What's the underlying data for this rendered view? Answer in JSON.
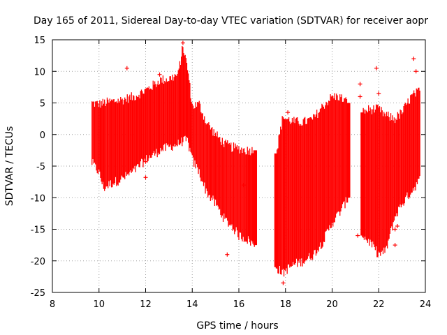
{
  "chart_data": {
    "type": "scatter",
    "title": "Day 165 of 2011, Sidereal Day-to-day VTEC variation (SDTVAR) for receiver aopr",
    "xlabel": "GPS time / hours",
    "ylabel": "SDTVAR / TECUs",
    "xlim": [
      8,
      24
    ],
    "ylim": [
      -25,
      15
    ],
    "xticks": [
      8,
      10,
      12,
      14,
      16,
      18,
      20,
      22,
      24
    ],
    "yticks": [
      -25,
      -20,
      -15,
      -10,
      -5,
      0,
      5,
      10,
      15
    ],
    "grid": true,
    "marker": "plus",
    "color": "#ff0000",
    "series": [
      {
        "name": "SDTVAR",
        "envelope": [
          {
            "x": 9.7,
            "min": -4.5,
            "max": 5.0
          },
          {
            "x": 10.0,
            "min": -6.0,
            "max": 4.8
          },
          {
            "x": 10.2,
            "min": -8.5,
            "max": 5.0
          },
          {
            "x": 10.5,
            "min": -7.8,
            "max": 5.2
          },
          {
            "x": 11.0,
            "min": -7.0,
            "max": 5.5
          },
          {
            "x": 11.5,
            "min": -5.8,
            "max": 6.0
          },
          {
            "x": 12.0,
            "min": -4.0,
            "max": 7.0
          },
          {
            "x": 12.5,
            "min": -2.8,
            "max": 8.2
          },
          {
            "x": 12.6,
            "min": -2.5,
            "max": 8.6
          },
          {
            "x": 13.0,
            "min": -2.0,
            "max": 8.8
          },
          {
            "x": 13.4,
            "min": -1.5,
            "max": 9.5
          },
          {
            "x": 13.6,
            "min": -1.0,
            "max": 14.0
          },
          {
            "x": 13.8,
            "min": -1.0,
            "max": 10.5
          },
          {
            "x": 14.0,
            "min": -4.0,
            "max": 4.5
          },
          {
            "x": 14.3,
            "min": -6.0,
            "max": 4.8
          },
          {
            "x": 14.6,
            "min": -9.0,
            "max": 2.0
          },
          {
            "x": 15.0,
            "min": -11.0,
            "max": 0.0
          },
          {
            "x": 15.4,
            "min": -13.5,
            "max": -1.5
          },
          {
            "x": 15.7,
            "min": -14.5,
            "max": -2.0
          },
          {
            "x": 16.0,
            "min": -16.0,
            "max": -2.2
          },
          {
            "x": 16.3,
            "min": -16.5,
            "max": -2.5
          },
          {
            "x": 16.5,
            "min": -17.0,
            "max": -2.5
          },
          {
            "x": 16.7,
            "min": -17.5,
            "max": -2.5
          },
          {
            "x": 17.6,
            "min": -21.0,
            "max": -3.0
          },
          {
            "x": 17.9,
            "min": -22.0,
            "max": 3.0
          },
          {
            "x": 18.0,
            "min": -21.5,
            "max": 2.5
          },
          {
            "x": 18.4,
            "min": -20.5,
            "max": 2.0
          },
          {
            "x": 18.8,
            "min": -20.0,
            "max": 2.0
          },
          {
            "x": 19.2,
            "min": -19.0,
            "max": 2.5
          },
          {
            "x": 19.6,
            "min": -17.0,
            "max": 4.5
          },
          {
            "x": 20.0,
            "min": -14.0,
            "max": 6.0
          },
          {
            "x": 20.3,
            "min": -12.5,
            "max": 6.0
          },
          {
            "x": 20.7,
            "min": -10.0,
            "max": 5.0
          },
          {
            "x": 21.3,
            "min": -16.0,
            "max": 3.5
          },
          {
            "x": 21.6,
            "min": -17.0,
            "max": 4.0
          },
          {
            "x": 22.0,
            "min": -19.0,
            "max": 4.0
          },
          {
            "x": 22.3,
            "min": -18.5,
            "max": 3.0
          },
          {
            "x": 22.7,
            "min": -13.0,
            "max": 2.5
          },
          {
            "x": 23.0,
            "min": -11.0,
            "max": 3.5
          },
          {
            "x": 23.4,
            "min": -9.0,
            "max": 6.0
          },
          {
            "x": 23.8,
            "min": -7.0,
            "max": 7.0
          }
        ],
        "outliers": [
          {
            "x": 11.2,
            "y": 10.5
          },
          {
            "x": 12.6,
            "y": 9.5
          },
          {
            "x": 13.6,
            "y": 14.5
          },
          {
            "x": 15.5,
            "y": -19.0
          },
          {
            "x": 16.2,
            "y": -8.0
          },
          {
            "x": 17.9,
            "y": -23.5
          },
          {
            "x": 18.1,
            "y": 3.5
          },
          {
            "x": 21.2,
            "y": 8.0
          },
          {
            "x": 21.2,
            "y": 6.0
          },
          {
            "x": 21.1,
            "y": -16.0
          },
          {
            "x": 21.9,
            "y": 10.5
          },
          {
            "x": 22.0,
            "y": 6.5
          },
          {
            "x": 22.7,
            "y": -15.0
          },
          {
            "x": 22.7,
            "y": -17.5
          },
          {
            "x": 23.5,
            "y": 12.0
          },
          {
            "x": 23.6,
            "y": 10.0
          },
          {
            "x": 12.0,
            "y": -6.8
          },
          {
            "x": 12.0,
            "y": -4.3
          },
          {
            "x": 22.8,
            "y": -14.5
          }
        ]
      }
    ]
  }
}
